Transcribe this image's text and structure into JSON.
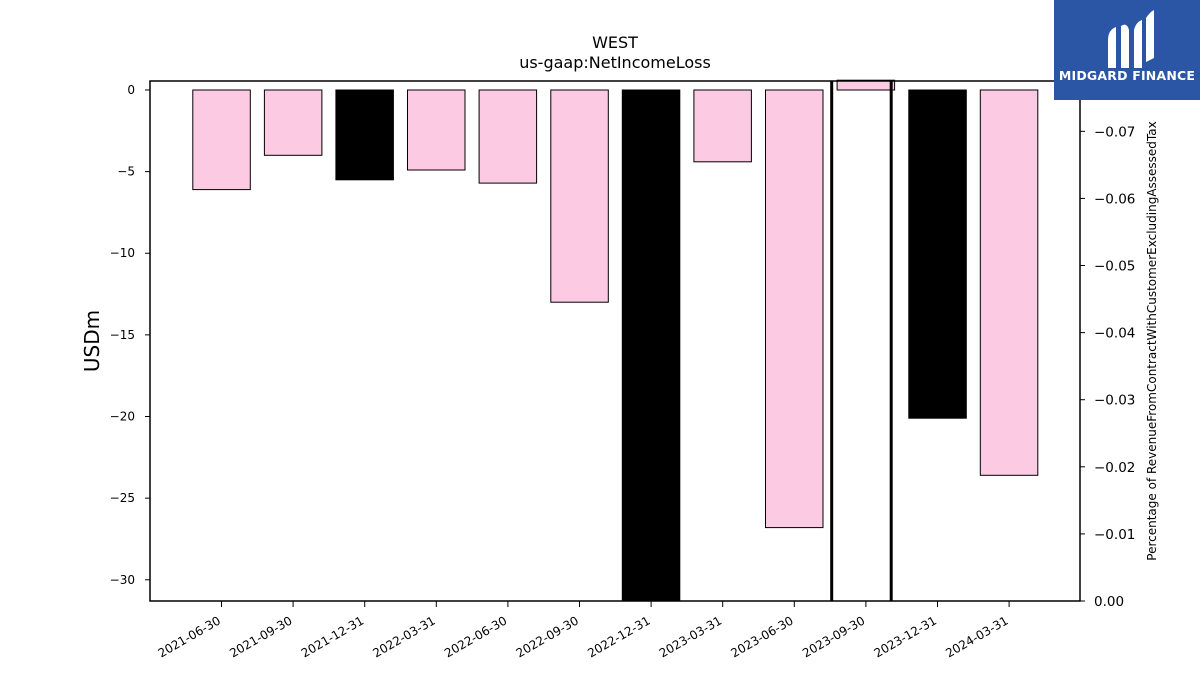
{
  "chart_data": {
    "type": "bar",
    "title": "WEST",
    "subtitle": "us-gaap:NetIncomeLoss",
    "ylabel": "USDm",
    "ylabel_right": "Percentage of RevenueFromContractWithCustomerExcludingAssessedTax",
    "ylim": [
      -31.3,
      0.55
    ],
    "ylim_right": [
      0.0,
      -0.0775
    ],
    "yticks": [
      0,
      -5,
      -10,
      -15,
      -20,
      -25,
      -30
    ],
    "yticks_right": [
      0.0,
      -0.01,
      -0.02,
      -0.03,
      -0.04,
      -0.05,
      -0.06,
      -0.07
    ],
    "categories": [
      "2021-06-30",
      "2021-09-30",
      "2021-12-31",
      "2022-03-31",
      "2022-06-30",
      "2022-09-30",
      "2022-12-31",
      "2023-03-31",
      "2023-06-30",
      "2023-09-30",
      "2023-12-31",
      "2024-03-31"
    ],
    "values": [
      -6.1,
      -4.0,
      -5.5,
      -4.9,
      -5.7,
      -13.0,
      -31.3,
      -4.4,
      -26.8,
      0.6,
      -20.1,
      -23.6
    ],
    "bar_styles": [
      "pink",
      "pink",
      "black",
      "pink",
      "pink",
      "pink",
      "black",
      "pink",
      "pink",
      "pink",
      "black",
      "pink"
    ],
    "highlight_span": [
      "2023-09-30"
    ],
    "colors": {
      "pink": "#fccae2",
      "black": "#000000",
      "edge": "#000000"
    },
    "grid": false,
    "legend": "none"
  },
  "logo": {
    "text": "MIDGARD FINANCE",
    "background": "#2b56a6"
  }
}
